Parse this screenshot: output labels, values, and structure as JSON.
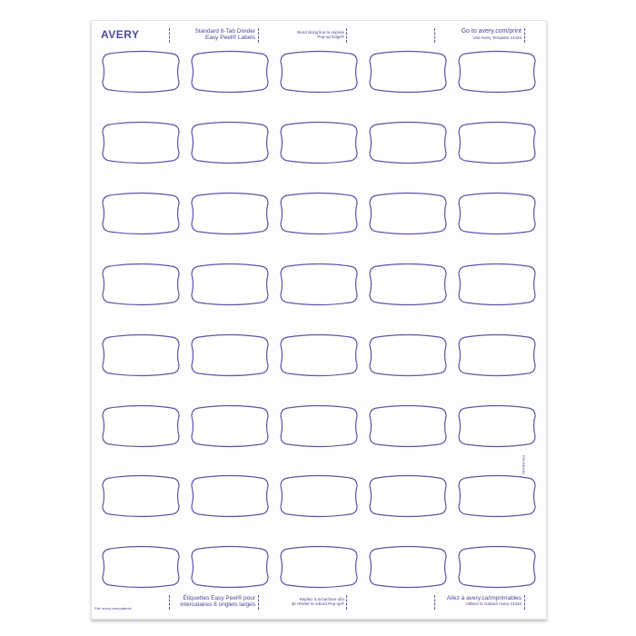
{
  "brand": "AVERY",
  "header": {
    "product_line1": "Standard 8-Tab Divider",
    "product_line2": "Easy Peel® Labels",
    "bend_line1": "Bend along line to expose",
    "bend_line2": "Pop-up Edge®",
    "goto": "Go to avery.com/print",
    "template": "Use Avery Template 14433"
  },
  "footer": {
    "patents": "Pat: avery.com/patents",
    "fr_product_line1": "Étiquettes Easy Peel® pour",
    "fr_product_line2": "intercalaires 8 onglets larges",
    "fr_bend_line1": "Repliez à la hachure afin",
    "fr_bend_line2": "de révéler le rebord Pop-up®",
    "fr_goto": "Allez à avery.ca/imprimables",
    "fr_template": "Utilisez le Gabarit Avery 14433"
  },
  "part_number": "P/N 640181",
  "grid": {
    "rows": 8,
    "columns": 5
  },
  "colors": {
    "label_outline": "#5a55a8",
    "text": "#4a4a9a"
  }
}
